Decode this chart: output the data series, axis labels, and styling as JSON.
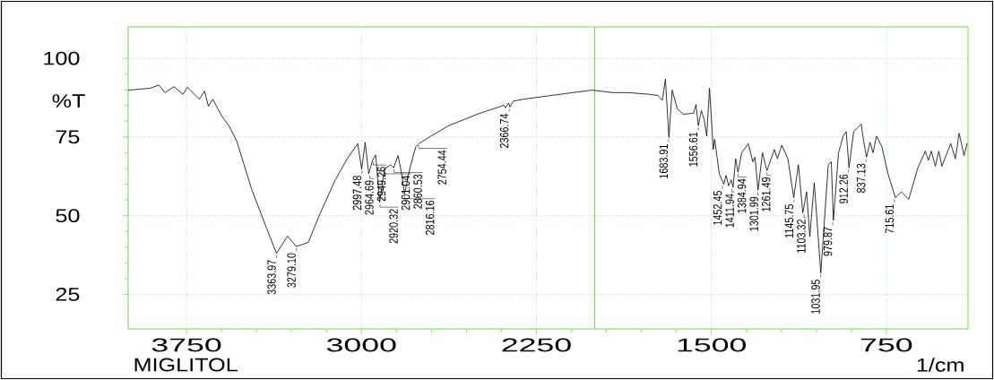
{
  "chart_data": {
    "type": "line",
    "title": "MIGLITOL",
    "xlabel": "1/cm",
    "ylabel": "%T",
    "xlim": [
      4000,
      400
    ],
    "ylim": [
      14,
      110
    ],
    "xticks": [
      3750,
      3000,
      2250,
      1500,
      750
    ],
    "yticks": [
      25,
      50,
      75,
      100
    ],
    "grid": true,
    "marker": "none",
    "color": "#000000",
    "ref_lines": [
      {
        "axis": "x",
        "value": 2000,
        "color": "#66e633"
      }
    ],
    "x": [
      3998,
      3906,
      3868,
      3842,
      3804,
      3765,
      3746,
      3695,
      3673,
      3656,
      3637,
      3599,
      3567,
      3535,
      3471,
      3407,
      3364,
      3317,
      3279,
      3228,
      3176,
      3112,
      3061,
      3016,
      2999,
      2984,
      2969,
      2952,
      2939,
      2922,
      2901,
      2875,
      2862,
      2843,
      2830,
      2815,
      2792,
      2767,
      2754,
      2702,
      2626,
      2498,
      2389,
      2382,
      2369,
      2363,
      2350,
      2306,
      2177,
      2011,
      1921,
      1857,
      1768,
      1729,
      1710,
      1697,
      1682,
      1668,
      1646,
      1620,
      1576,
      1566,
      1556,
      1543,
      1531,
      1520,
      1508,
      1492,
      1486,
      1466,
      1447,
      1437,
      1426,
      1415,
      1407,
      1396,
      1386,
      1370,
      1342,
      1322,
      1313,
      1300,
      1281,
      1262,
      1230,
      1217,
      1198,
      1172,
      1147,
      1127,
      1108,
      1092,
      1078,
      1059,
      1031,
      999,
      986,
      977,
      955,
      935,
      922,
      910,
      890,
      858,
      848,
      835,
      820,
      807,
      792,
      769,
      743,
      711,
      686,
      654,
      615,
      583,
      570,
      557,
      540,
      525,
      512,
      474,
      454,
      438,
      417,
      404
    ],
    "values": [
      89.9,
      90.5,
      91.5,
      89.1,
      91.0,
      88.6,
      90.8,
      87.0,
      89.6,
      84.8,
      87.0,
      81.7,
      78.4,
      73.8,
      58.5,
      46.1,
      38.0,
      43.5,
      40.2,
      41.5,
      50.9,
      61.4,
      68.1,
      72.9,
      64.8,
      73.3,
      63.3,
      67.6,
      69.3,
      54.2,
      64.8,
      66.2,
      65.2,
      69.1,
      64.3,
      56.9,
      65.2,
      71.9,
      72.9,
      75.3,
      78.6,
      82.4,
      85.1,
      84.3,
      85.8,
      84.5,
      86.4,
      87.0,
      88.3,
      89.9,
      89.1,
      89.1,
      88.6,
      88.2,
      86.7,
      93.4,
      74.8,
      89.9,
      83.9,
      82.2,
      82.6,
      85.3,
      78.6,
      83.4,
      80.5,
      75.3,
      90.5,
      71.0,
      74.3,
      63.3,
      60.0,
      62.8,
      59.5,
      61.4,
      59.0,
      68.1,
      63.8,
      70.0,
      72.9,
      67.1,
      68.6,
      58.1,
      70.0,
      64.3,
      71.0,
      68.1,
      72.4,
      68.1,
      55.7,
      66.2,
      50.9,
      57.6,
      43.3,
      60.5,
      31.8,
      66.2,
      67.1,
      48.5,
      70.0,
      75.3,
      76.7,
      65.2,
      76.7,
      79.1,
      74.0,
      68.6,
      73.3,
      70.0,
      75.3,
      71.9,
      63.3,
      55.7,
      57.6,
      55.2,
      65.2,
      70.5,
      67.6,
      70.5,
      65.7,
      70.5,
      65.7,
      72.9,
      68.1,
      76.2,
      69.1,
      72.9
    ],
    "annotations": [
      {
        "text": "3363.97",
        "x": 3363.97,
        "y": 38.0
      },
      {
        "text": "3279.10",
        "x": 3279.1,
        "y": 40.2
      },
      {
        "text": "2997.48",
        "x": 2997.48,
        "y": 64.8
      },
      {
        "text": "2964.69",
        "x": 2964.69,
        "y": 63.3
      },
      {
        "text": "2949.26",
        "x": 2949.26,
        "y": 67.6
      },
      {
        "text": "2920.32",
        "x": 2920.32,
        "y": 54.2
      },
      {
        "text": "2901.04",
        "x": 2901.04,
        "y": 64.8
      },
      {
        "text": "2860.53",
        "x": 2860.53,
        "y": 65.2
      },
      {
        "text": "2816.16",
        "x": 2816.16,
        "y": 56.9
      },
      {
        "text": "2754.44",
        "x": 2754.44,
        "y": 72.9
      },
      {
        "text": "2366.74",
        "x": 2366.74,
        "y": 84.5
      },
      {
        "text": "1683.91",
        "x": 1683.91,
        "y": 74.8
      },
      {
        "text": "1556.61",
        "x": 1556.61,
        "y": 78.6
      },
      {
        "text": "1452.45",
        "x": 1452.45,
        "y": 60.0
      },
      {
        "text": "1411.94",
        "x": 1411.94,
        "y": 59.0
      },
      {
        "text": "1384.94",
        "x": 1384.94,
        "y": 63.8
      },
      {
        "text": "1301.99",
        "x": 1301.99,
        "y": 58.1
      },
      {
        "text": "1261.49",
        "x": 1261.49,
        "y": 64.3
      },
      {
        "text": "1145.75",
        "x": 1145.75,
        "y": 55.7
      },
      {
        "text": "1103.32",
        "x": 1103.32,
        "y": 50.9
      },
      {
        "text": "1031.95",
        "x": 1031.95,
        "y": 31.8
      },
      {
        "text": "979.87",
        "x": 979.87,
        "y": 48.5
      },
      {
        "text": "912.26",
        "x": 912.26,
        "y": 65.2
      },
      {
        "text": "837.13",
        "x": 837.13,
        "y": 68.6
      },
      {
        "text": "715.61",
        "x": 715.61,
        "y": 55.7
      }
    ]
  }
}
